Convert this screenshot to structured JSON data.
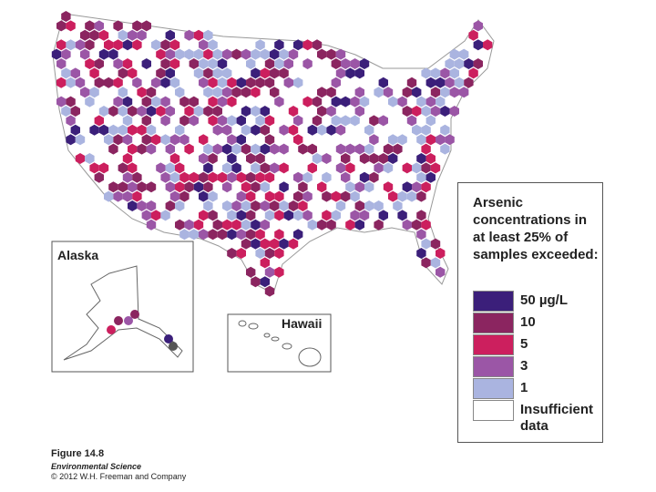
{
  "legend": {
    "title": "Arsenic concentrations in at least 25% of samples exceeded:",
    "items": [
      {
        "label": "50 µg/L",
        "color": "#3b1f7a"
      },
      {
        "label": "10",
        "color": "#8b2560"
      },
      {
        "label": "5",
        "color": "#cc1f5e"
      },
      {
        "label": "3",
        "color": "#9b56a6"
      },
      {
        "label": "1",
        "color": "#aab4e0"
      },
      {
        "label": "Insufficient data",
        "color": "#ffffff"
      }
    ]
  },
  "insets": [
    "Alaska",
    "Hawaii"
  ],
  "caption": [
    "Figure 14.8",
    "Environmental Science",
    "© 2012 W.H. Freeman and Company"
  ]
}
